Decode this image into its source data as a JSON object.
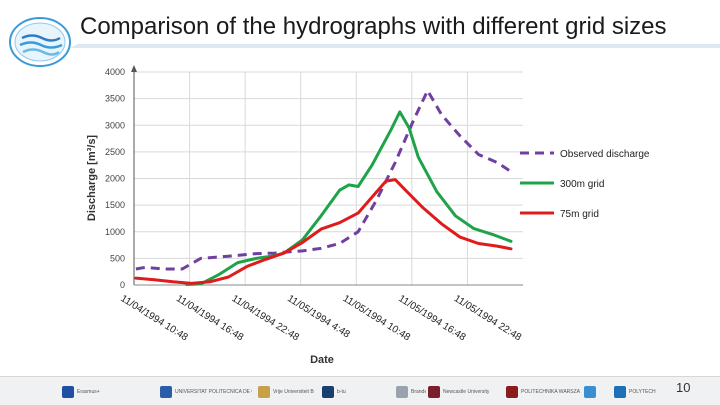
{
  "slide": {
    "title": "Comparison of the hydrographs with different grid sizes",
    "page_number": "10"
  },
  "footer": {
    "partners": [
      {
        "name": "Erasmus+",
        "color": "#1f4ea3"
      },
      {
        "name": "UNIVERSITAT POLITÈCNICA DE CATALUNYA",
        "color": "#2a5caa"
      },
      {
        "name": "Vrije Universiteit Brussel",
        "color": "#c8a04a"
      },
      {
        "name": "b-tu",
        "color": "#1a3e6e"
      },
      {
        "name": "Brandenburgische Technische Universität Cottbus - Senftenberg",
        "color": "#9aa3ad"
      },
      {
        "name": "Newcastle University",
        "color": "#7a1f2b"
      },
      {
        "name": "POLITECHNIKA WARSZAWSKA",
        "color": "#8a1c1c"
      },
      {
        "name": "",
        "color": "#3a8fd0"
      },
      {
        "name": "POLYTECH",
        "color": "#1d6fb8"
      }
    ]
  },
  "chart_data": {
    "type": "line",
    "title": "",
    "xlabel": "Date",
    "ylabel": "Discharge [m³/s]",
    "ylim": [
      0,
      4000
    ],
    "yticks": [
      0,
      500,
      1000,
      1500,
      2000,
      2500,
      3000,
      3500,
      4000
    ],
    "xlim": [
      "1994-11-04T10:48",
      "1994-11-06T04:48"
    ],
    "xticks": [
      "1994-11-04T10:48",
      "1994-11-04T16:48",
      "1994-11-04T22:48",
      "1994-11-05T04:48",
      "1994-11-05T10:48",
      "1994-11-05T16:48",
      "1994-11-05T22:48"
    ],
    "xtick_labels": [
      "11/04/1994 10:48",
      "11/04/1994 16:48",
      "11/04/1994 22:48",
      "11/05/1994 4:48",
      "11/05/1994 10:48",
      "11/05/1994 16:48",
      "11/05/1994 22:48"
    ],
    "grid": "both",
    "legend_position": "right",
    "series": [
      {
        "name": "Observed discharge",
        "color": "#6f3fa2",
        "style": "dashed",
        "points": [
          [
            "1994-11-04T11:00",
            300
          ],
          [
            "1994-11-04T12:00",
            330
          ],
          [
            "1994-11-04T14:00",
            300
          ],
          [
            "1994-11-04T16:00",
            300
          ],
          [
            "1994-11-04T17:00",
            400
          ],
          [
            "1994-11-04T18:00",
            500
          ],
          [
            "1994-11-04T21:00",
            540
          ],
          [
            "1994-11-05T00:00",
            590
          ],
          [
            "1994-11-05T02:00",
            600
          ],
          [
            "1994-11-05T04:00",
            630
          ],
          [
            "1994-11-05T05:00",
            640
          ],
          [
            "1994-11-05T07:00",
            690
          ],
          [
            "1994-11-05T09:00",
            780
          ],
          [
            "1994-11-05T11:00",
            1000
          ],
          [
            "1994-11-05T13:00",
            1600
          ],
          [
            "1994-11-05T15:00",
            2300
          ],
          [
            "1994-11-05T17:00",
            3100
          ],
          [
            "1994-11-05T18:30",
            3650
          ],
          [
            "1994-11-05T20:00",
            3200
          ],
          [
            "1994-11-05T22:00",
            2800
          ],
          [
            "1994-11-06T00:00",
            2450
          ],
          [
            "1994-11-06T02:00",
            2300
          ],
          [
            "1994-11-06T03:30",
            2130
          ]
        ]
      },
      {
        "name": "300m grid",
        "color": "#1ea34a",
        "style": "solid",
        "points": [
          [
            "1994-11-04T16:30",
            10
          ],
          [
            "1994-11-04T18:00",
            20
          ],
          [
            "1994-11-04T20:00",
            200
          ],
          [
            "1994-11-04T22:00",
            420
          ],
          [
            "1994-11-05T00:00",
            500
          ],
          [
            "1994-11-05T02:00",
            550
          ],
          [
            "1994-11-05T03:00",
            600
          ],
          [
            "1994-11-05T05:00",
            850
          ],
          [
            "1994-11-05T07:00",
            1300
          ],
          [
            "1994-11-05T09:00",
            1780
          ],
          [
            "1994-11-05T10:00",
            1880
          ],
          [
            "1994-11-05T11:00",
            1850
          ],
          [
            "1994-11-05T12:30",
            2250
          ],
          [
            "1994-11-05T14:30",
            2900
          ],
          [
            "1994-11-05T15:30",
            3250
          ],
          [
            "1994-11-05T16:30",
            2950
          ],
          [
            "1994-11-05T17:30",
            2400
          ],
          [
            "1994-11-05T19:30",
            1750
          ],
          [
            "1994-11-05T21:30",
            1300
          ],
          [
            "1994-11-05T23:30",
            1060
          ],
          [
            "1994-11-06T01:30",
            950
          ],
          [
            "1994-11-06T03:30",
            820
          ]
        ]
      },
      {
        "name": "75m grid",
        "color": "#e01b1b",
        "style": "solid",
        "points": [
          [
            "1994-11-04T11:00",
            130
          ],
          [
            "1994-11-04T13:00",
            100
          ],
          [
            "1994-11-04T15:00",
            60
          ],
          [
            "1994-11-04T17:00",
            30
          ],
          [
            "1994-11-04T19:00",
            60
          ],
          [
            "1994-11-04T21:00",
            150
          ],
          [
            "1994-11-04T23:00",
            350
          ],
          [
            "1994-11-05T01:00",
            480
          ],
          [
            "1994-11-05T03:00",
            600
          ],
          [
            "1994-11-05T05:00",
            800
          ],
          [
            "1994-11-05T07:00",
            1050
          ],
          [
            "1994-11-05T09:00",
            1170
          ],
          [
            "1994-11-05T11:00",
            1350
          ],
          [
            "1994-11-05T12:30",
            1650
          ],
          [
            "1994-11-05T14:00",
            1950
          ],
          [
            "1994-11-05T15:00",
            1980
          ],
          [
            "1994-11-05T16:00",
            1800
          ],
          [
            "1994-11-05T18:00",
            1450
          ],
          [
            "1994-11-05T20:00",
            1150
          ],
          [
            "1994-11-05T22:00",
            900
          ],
          [
            "1994-11-06T00:00",
            780
          ],
          [
            "1994-11-06T02:00",
            730
          ],
          [
            "1994-11-06T03:30",
            680
          ]
        ]
      }
    ]
  }
}
